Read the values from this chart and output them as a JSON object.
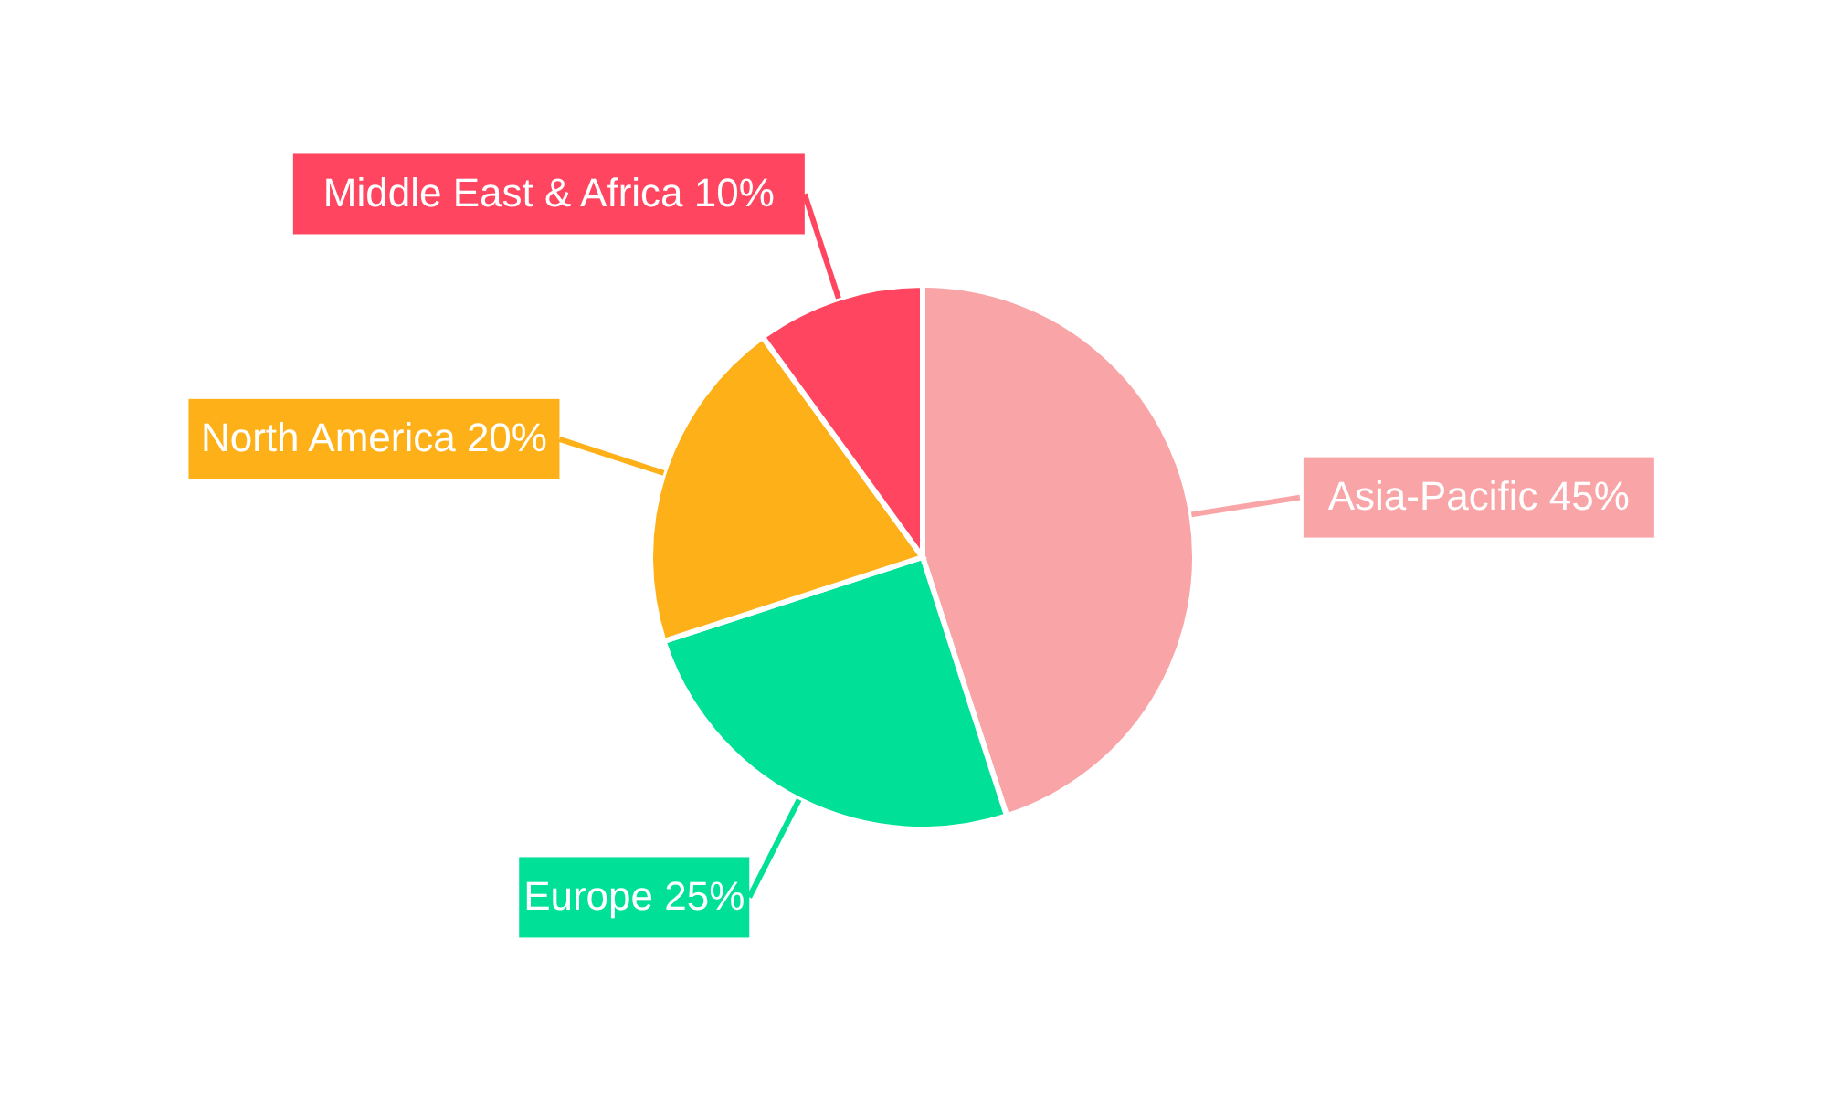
{
  "chart_data": {
    "type": "pie",
    "categories": [
      "Asia-Pacific",
      "Europe",
      "North America",
      "Middle East & Africa"
    ],
    "values": [
      45,
      25,
      20,
      10
    ],
    "value_labels": [
      "45%",
      "25%",
      "20%",
      "10%"
    ],
    "colors": [
      "#f9a5a7",
      "#00e096",
      "#feb019",
      "#ff4560"
    ],
    "legend": false
  }
}
